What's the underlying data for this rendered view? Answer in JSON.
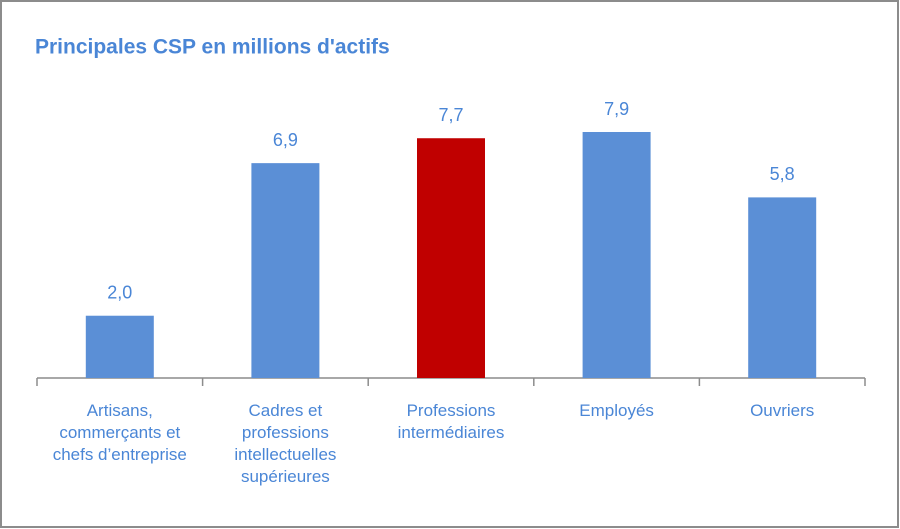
{
  "chart_data": {
    "type": "bar",
    "title": "Principales CSP en millions d'actifs",
    "categories": [
      "Artisans, commerçants et chefs d’entreprise",
      "Cadres et professions intellectuelles supérieures",
      "Professions intermédiaires",
      "Employés",
      "Ouvriers"
    ],
    "values": [
      2.0,
      6.9,
      7.7,
      7.9,
      5.8
    ],
    "value_labels": [
      "2,0",
      "6,9",
      "7,7",
      "7,9",
      "5,8"
    ],
    "colors": [
      "#5b8fd6",
      "#5b8fd6",
      "#c00000",
      "#5b8fd6",
      "#5b8fd6"
    ]
  }
}
